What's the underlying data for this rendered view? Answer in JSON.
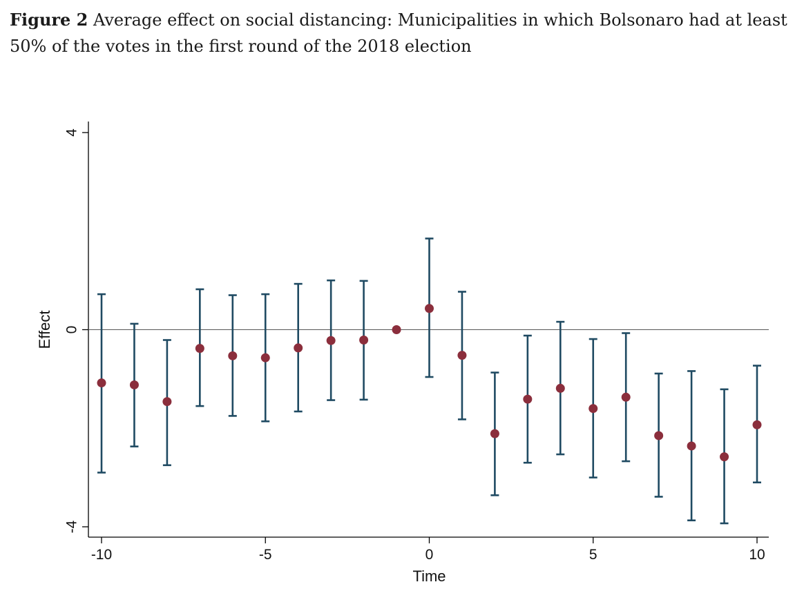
{
  "caption": {
    "label": "Figure 2",
    "text": " Average effect on social distancing: Municipalities in which Bolsonaro had at least 50% of the votes in the first round of the 2018 election"
  },
  "chart_data": {
    "type": "scatter",
    "xlabel": "Time",
    "ylabel": "Effect",
    "xlim": [
      -10,
      10
    ],
    "ylim": [
      -4,
      4
    ],
    "xticks": [
      -10,
      -5,
      0,
      5,
      10
    ],
    "yticks": [
      -4,
      0,
      4
    ],
    "xtick_labels": [
      "-10",
      "-5",
      "0",
      "5",
      "10"
    ],
    "ytick_labels": [
      "-4",
      "0",
      "4"
    ],
    "reference_line": 0,
    "grid": false,
    "colors": {
      "point": "#8b2e3c",
      "errorbar": "#1f4a62",
      "axis": "#000000",
      "refline": "#555555"
    },
    "series": [
      {
        "x": [
          -10,
          -9,
          -8,
          -7,
          -6,
          -5,
          -4,
          -3,
          -2,
          -1,
          0,
          1,
          2,
          3,
          4,
          5,
          6,
          7,
          8,
          9,
          10
        ],
        "y": [
          -1.08,
          -1.12,
          -1.46,
          -0.38,
          -0.53,
          -0.57,
          -0.37,
          -0.22,
          -0.21,
          0.0,
          0.43,
          -0.52,
          -2.11,
          -1.41,
          -1.19,
          -1.6,
          -1.37,
          -2.15,
          -2.36,
          -2.58,
          -1.93
        ],
        "lower": [
          -2.9,
          -2.37,
          -2.75,
          -1.55,
          -1.75,
          -1.86,
          -1.66,
          -1.43,
          -1.42,
          0.0,
          -0.96,
          -1.82,
          -3.36,
          -2.7,
          -2.53,
          -3.0,
          -2.67,
          -3.39,
          -3.87,
          -3.93,
          -3.1
        ],
        "upper": [
          0.72,
          0.12,
          -0.21,
          0.82,
          0.7,
          0.72,
          0.93,
          1.0,
          0.99,
          0.0,
          1.85,
          0.77,
          -0.87,
          -0.12,
          0.16,
          -0.19,
          -0.07,
          -0.89,
          -0.84,
          -1.21,
          -0.73
        ]
      }
    ]
  }
}
